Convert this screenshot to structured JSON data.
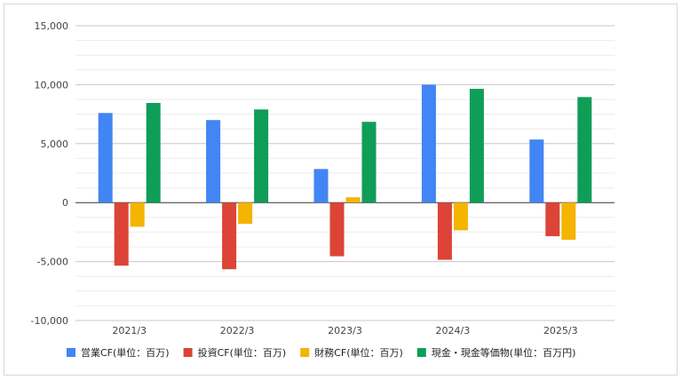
{
  "chart_data": {
    "type": "bar",
    "categories": [
      "2021/3",
      "2022/3",
      "2023/3",
      "2024/3",
      "2025/3"
    ],
    "series": [
      {
        "name": "営業CF(単位：百万)",
        "color": "#4285f4",
        "values": [
          7600,
          7000,
          2850,
          10000,
          5350
        ]
      },
      {
        "name": "投資CF(単位：百万)",
        "color": "#db4437",
        "values": [
          -5350,
          -5650,
          -4550,
          -4850,
          -2850
        ]
      },
      {
        "name": "財務CF(単位：百万)",
        "color": "#f4b400",
        "values": [
          -2050,
          -1800,
          450,
          -2350,
          -3150
        ]
      },
      {
        "name": "現金・現金等価物(単位：百万円)",
        "color": "#0f9d58",
        "values": [
          8450,
          7900,
          6850,
          9650,
          8950
        ]
      }
    ],
    "yticks": [
      "15,000",
      "10,000",
      "5,000",
      "0",
      "-5,000",
      "-10,000"
    ],
    "ylim": [
      -10000,
      15000
    ],
    "grid": true,
    "legend_position": "bottom"
  }
}
